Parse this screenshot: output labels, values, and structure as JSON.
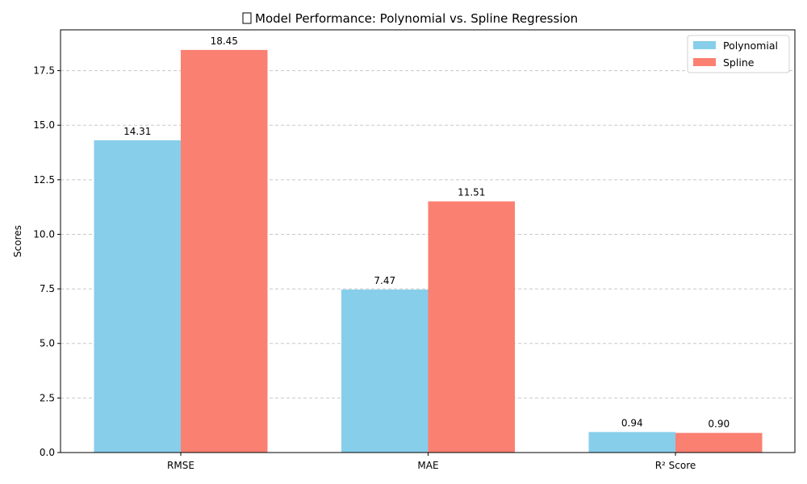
{
  "chart_data": {
    "type": "bar",
    "title": "Model Performance: Polynomial vs. Spline Regression",
    "title_icon": "chart-emoji-icon",
    "xlabel": "",
    "ylabel": "Scores",
    "categories": [
      "RMSE",
      "MAE",
      "R² Score"
    ],
    "series": [
      {
        "name": "Polynomial",
        "color": "#87CEEB",
        "values": [
          14.31,
          7.47,
          0.94
        ],
        "labels": [
          "14.31",
          "7.47",
          "0.94"
        ]
      },
      {
        "name": "Spline",
        "color": "#FA8072",
        "values": [
          18.45,
          11.51,
          0.9
        ],
        "labels": [
          "18.45",
          "11.51",
          "0.90"
        ]
      }
    ],
    "ylim": [
      0,
      19.37
    ],
    "yticks": [
      0,
      2.5,
      5,
      7.5,
      10,
      12.5,
      15,
      17.5
    ],
    "ytick_labels": [
      "0.0",
      "2.5",
      "5.0",
      "7.5",
      "10.0",
      "12.5",
      "15.0",
      "17.5"
    ],
    "grid": "y-dashed",
    "legend_position": "top-right"
  }
}
